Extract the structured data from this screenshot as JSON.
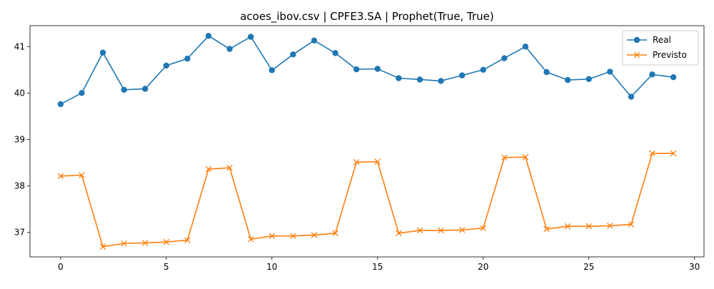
{
  "chart_data": {
    "type": "line",
    "title": "acoes_ibov.csv | CPFE3.SA | Prophet(True, True)",
    "xlabel": "",
    "ylabel": "",
    "xlim": [
      -1.45,
      30.45
    ],
    "ylim": [
      36.47,
      41.45
    ],
    "xticks": [
      0,
      5,
      10,
      15,
      20,
      25,
      30
    ],
    "yticks": [
      37,
      38,
      39,
      40,
      41
    ],
    "grid": false,
    "legend_position": "top-right",
    "x": [
      0,
      1,
      2,
      3,
      4,
      5,
      6,
      7,
      8,
      9,
      10,
      11,
      12,
      13,
      14,
      15,
      16,
      17,
      18,
      19,
      20,
      21,
      22,
      23,
      24,
      25,
      26,
      27,
      28,
      29
    ],
    "series": [
      {
        "name": "Real",
        "color": "#1f77b4",
        "marker": "circle",
        "values": [
          39.76,
          40.0,
          40.87,
          40.07,
          40.09,
          40.59,
          40.74,
          41.23,
          40.95,
          41.21,
          40.49,
          40.83,
          41.13,
          40.86,
          40.51,
          40.52,
          40.32,
          40.29,
          40.26,
          40.38,
          40.5,
          40.75,
          41.0,
          40.45,
          40.28,
          40.3,
          40.46,
          39.92,
          40.4,
          40.34
        ]
      },
      {
        "name": "Previsto",
        "color": "#ff7f0e",
        "marker": "x",
        "values": [
          38.21,
          38.23,
          36.69,
          36.76,
          36.77,
          36.79,
          36.83,
          38.36,
          38.39,
          36.85,
          36.92,
          36.92,
          36.94,
          36.98,
          38.51,
          38.52,
          36.98,
          37.04,
          37.04,
          37.05,
          37.09,
          38.61,
          38.62,
          37.07,
          37.13,
          37.13,
          37.14,
          37.17,
          38.7,
          38.7
        ]
      }
    ]
  }
}
